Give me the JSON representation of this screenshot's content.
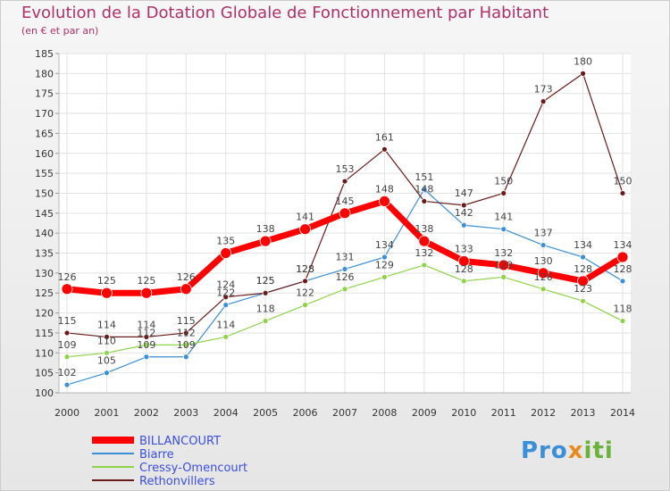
{
  "header": {
    "title": "Evolution de la Dotation Globale de Fonctionnement par Habitant",
    "subtitle": "(en € et par an)"
  },
  "logo": {
    "text": "Proxiti"
  },
  "colors": {
    "title": "#b0306a",
    "BILLANCOURT": "#ff0000",
    "Biarre": "#3a8fd8",
    "Cressy-Omencourt": "#8ed34a",
    "Rethonvillers": "#6b1a1a",
    "legend_text": "#3a4ee0"
  },
  "chart_data": {
    "type": "line",
    "x": [
      "2000",
      "2001",
      "2002",
      "2003",
      "2004",
      "2005",
      "2006",
      "2007",
      "2008",
      "2009",
      "2010",
      "2011",
      "2012",
      "2013",
      "2014"
    ],
    "ylim": [
      100,
      185
    ],
    "yticks": [
      100,
      105,
      110,
      115,
      120,
      125,
      130,
      135,
      140,
      145,
      150,
      155,
      160,
      165,
      170,
      175,
      180,
      185
    ],
    "grid": true,
    "legend_position": "bottom-left",
    "series": [
      {
        "name": "BILLANCOURT",
        "values": [
          126,
          125,
          125,
          126,
          135,
          138,
          141,
          145,
          148,
          138,
          133,
          132,
          130,
          128,
          134
        ]
      },
      {
        "name": "Biarre",
        "values": [
          102,
          105,
          109,
          109,
          122,
          125,
          128,
          131,
          134,
          151,
          142,
          141,
          137,
          134,
          128
        ]
      },
      {
        "name": "Cressy-Omencourt",
        "values": [
          109,
          110,
          112,
          112,
          114,
          118,
          122,
          126,
          129,
          132,
          128,
          129,
          126,
          123,
          118
        ]
      },
      {
        "name": "Rethonvillers",
        "values": [
          115,
          114,
          114,
          115,
          124,
          125,
          128,
          153,
          161,
          148,
          147,
          150,
          173,
          180,
          150
        ]
      }
    ]
  }
}
